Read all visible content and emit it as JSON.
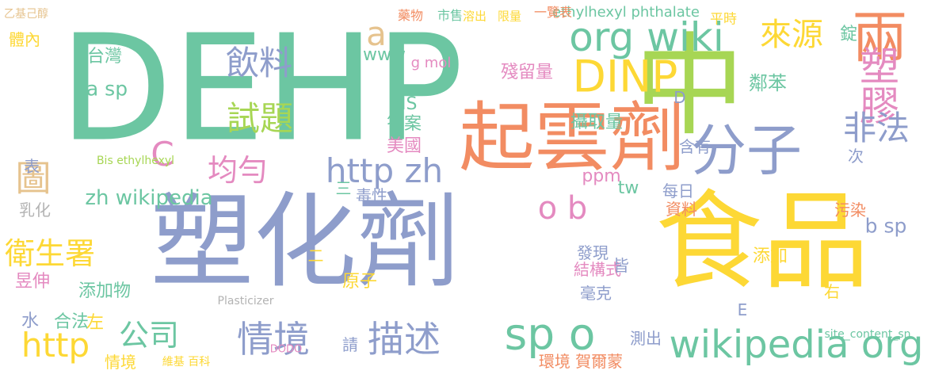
{
  "words": [
    {
      "text": "DEHP",
      "c": "c1"
    },
    {
      "text": "塑化劑",
      "c": "c3"
    },
    {
      "text": "食品",
      "c": "c6"
    },
    {
      "text": "中",
      "c": "c5"
    },
    {
      "text": "起雲劑",
      "c": "c2"
    },
    {
      "text": "分子",
      "c": "c3"
    },
    {
      "text": "DINP",
      "c": "c6"
    },
    {
      "text": "sp o",
      "c": "c1"
    },
    {
      "text": "情境",
      "c": "c3"
    },
    {
      "text": "描述",
      "c": "c3"
    },
    {
      "text": "wikipedia org",
      "c": "c1"
    },
    {
      "text": "兩",
      "c": "c2"
    },
    {
      "text": "org wiki",
      "c": "c1"
    },
    {
      "text": "來源",
      "c": "c6"
    },
    {
      "text": "塑膠",
      "c": "c4"
    },
    {
      "text": "非法",
      "c": "c3"
    },
    {
      "text": "試題",
      "c": "c5"
    },
    {
      "text": "飲料",
      "c": "c3"
    },
    {
      "text": "a",
      "c": "c7"
    },
    {
      "text": "圖",
      "c": "c7"
    },
    {
      "text": "http zh",
      "c": "c3"
    },
    {
      "text": "均勻",
      "c": "c4"
    },
    {
      "text": "C",
      "c": "c4"
    },
    {
      "text": "http",
      "c": "c6"
    },
    {
      "text": "衛生署",
      "c": "c6"
    },
    {
      "text": "o b",
      "c": "c4"
    },
    {
      "text": "公司",
      "c": "c1"
    },
    {
      "text": "zh wikipedia",
      "c": "c1"
    },
    {
      "text": "b sp",
      "c": "c3"
    },
    {
      "text": "a sp",
      "c": "c1"
    },
    {
      "text": "殘留量",
      "c": "c4"
    },
    {
      "text": "攝取量",
      "c": "c1"
    },
    {
      "text": "MS",
      "c": "c1"
    },
    {
      "text": "答案",
      "c": "c1"
    },
    {
      "text": "美國",
      "c": "c4"
    },
    {
      "text": "台灣",
      "c": "c1"
    },
    {
      "text": "www",
      "c": "c1"
    },
    {
      "text": "ethylhexyl phthalate",
      "c": "c1"
    },
    {
      "text": "一覽表",
      "c": "c2"
    },
    {
      "text": "市售",
      "c": "c1"
    },
    {
      "text": "溶出",
      "c": "c6"
    },
    {
      "text": "限量",
      "c": "c6"
    },
    {
      "text": "藥物",
      "c": "c2"
    },
    {
      "text": "平時",
      "c": "c6"
    },
    {
      "text": "鄰苯",
      "c": "c1"
    },
    {
      "text": "錠",
      "c": "c1"
    },
    {
      "text": "體內",
      "c": "c6"
    },
    {
      "text": "乳化",
      "c": "c8"
    },
    {
      "text": "表",
      "c": "c3"
    },
    {
      "text": "毒性",
      "c": "c3"
    },
    {
      "text": "三",
      "c": "c1"
    },
    {
      "text": "二",
      "c": "c6"
    },
    {
      "text": "每日",
      "c": "c3"
    },
    {
      "text": "ppm",
      "c": "c4"
    },
    {
      "text": "tw",
      "c": "c1"
    },
    {
      "text": "資料",
      "c": "c2"
    },
    {
      "text": "污染",
      "c": "c2"
    },
    {
      "text": "添加",
      "c": "c6"
    },
    {
      "text": "右",
      "c": "c6"
    },
    {
      "text": "發現",
      "c": "c3"
    },
    {
      "text": "結構式",
      "c": "c4"
    },
    {
      "text": "皆",
      "c": "c3"
    },
    {
      "text": "毫克",
      "c": "c3"
    },
    {
      "text": "原子",
      "c": "c6"
    },
    {
      "text": "昱伸",
      "c": "c4"
    },
    {
      "text": "添加物",
      "c": "c1"
    },
    {
      "text": "合法",
      "c": "c1"
    },
    {
      "text": "左",
      "c": "c6"
    },
    {
      "text": "水",
      "c": "c3"
    },
    {
      "text": "情境",
      "c": "c6"
    },
    {
      "text": "環境 賀爾蒙",
      "c": "c2"
    },
    {
      "text": "測出",
      "c": "c3"
    },
    {
      "text": "請",
      "c": "c3"
    },
    {
      "text": "含有",
      "c": "c3"
    },
    {
      "text": "次",
      "c": "c3"
    },
    {
      "text": "D",
      "c": "c3"
    },
    {
      "text": "E",
      "c": "c3"
    },
    {
      "text": "g mol",
      "c": "c4"
    },
    {
      "text": "Bis ethylhexyl",
      "c": "c5"
    },
    {
      "text": "維基 百科",
      "c": "c6"
    },
    {
      "text": "乙基己醇",
      "c": "c7"
    },
    {
      "text": "site_content_sn",
      "c": "c1"
    },
    {
      "text": "Plasticizer",
      "c": "c8"
    },
    {
      "text": "DODO",
      "c": "c4"
    }
  ]
}
